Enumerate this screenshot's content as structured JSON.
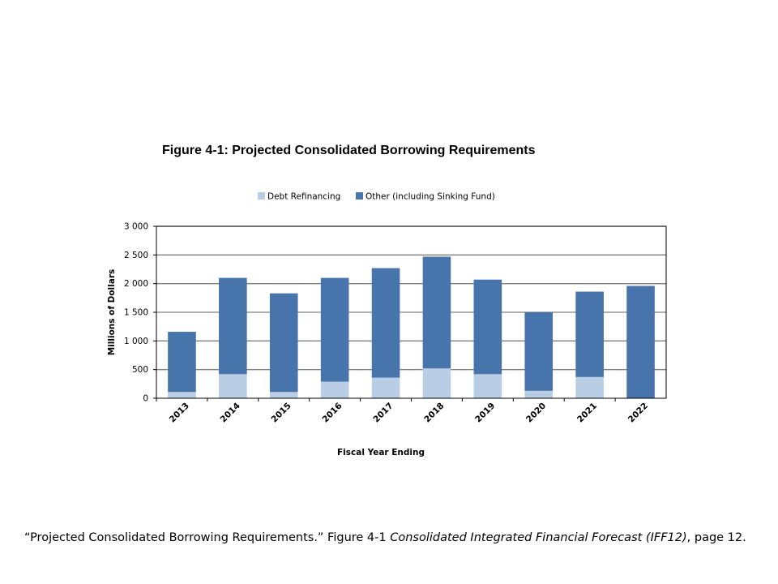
{
  "colors": {
    "debt_refinancing": "#b9cde5",
    "other": "#4674ab",
    "grid": "#7f7f7f",
    "axis": "#000000"
  },
  "chart_data": {
    "type": "bar",
    "stacked": true,
    "title": "Figure 4-1: Projected Consolidated Borrowing Requirements",
    "xlabel": "Fiscal Year Ending",
    "ylabel": "Millions of Dollars",
    "ylim": [
      0,
      3000
    ],
    "yticks": [
      0,
      500,
      1000,
      1500,
      2000,
      2500,
      3000
    ],
    "ytick_labels": [
      "0",
      "500",
      "1 000",
      "1 500",
      "2 000",
      "2 500",
      "3 000"
    ],
    "grid": true,
    "legend_position": "top",
    "categories": [
      "2013",
      "2014",
      "2015",
      "2016",
      "2017",
      "2018",
      "2019",
      "2020",
      "2021",
      "2022"
    ],
    "series": [
      {
        "name": "Debt Refinancing",
        "values": [
          110,
          420,
          110,
          290,
          360,
          520,
          420,
          130,
          370,
          0
        ]
      },
      {
        "name": "Other (including Sinking Fund)",
        "values": [
          1050,
          1680,
          1720,
          1810,
          1910,
          1950,
          1650,
          1370,
          1490,
          1960
        ]
      }
    ]
  },
  "caption": {
    "quote": "“Projected Consolidated Borrowing Requirements.” Figure 4-1 ",
    "source": "Consolidated Integrated Financial Forecast (IFF12)",
    "page": ", page 12."
  }
}
